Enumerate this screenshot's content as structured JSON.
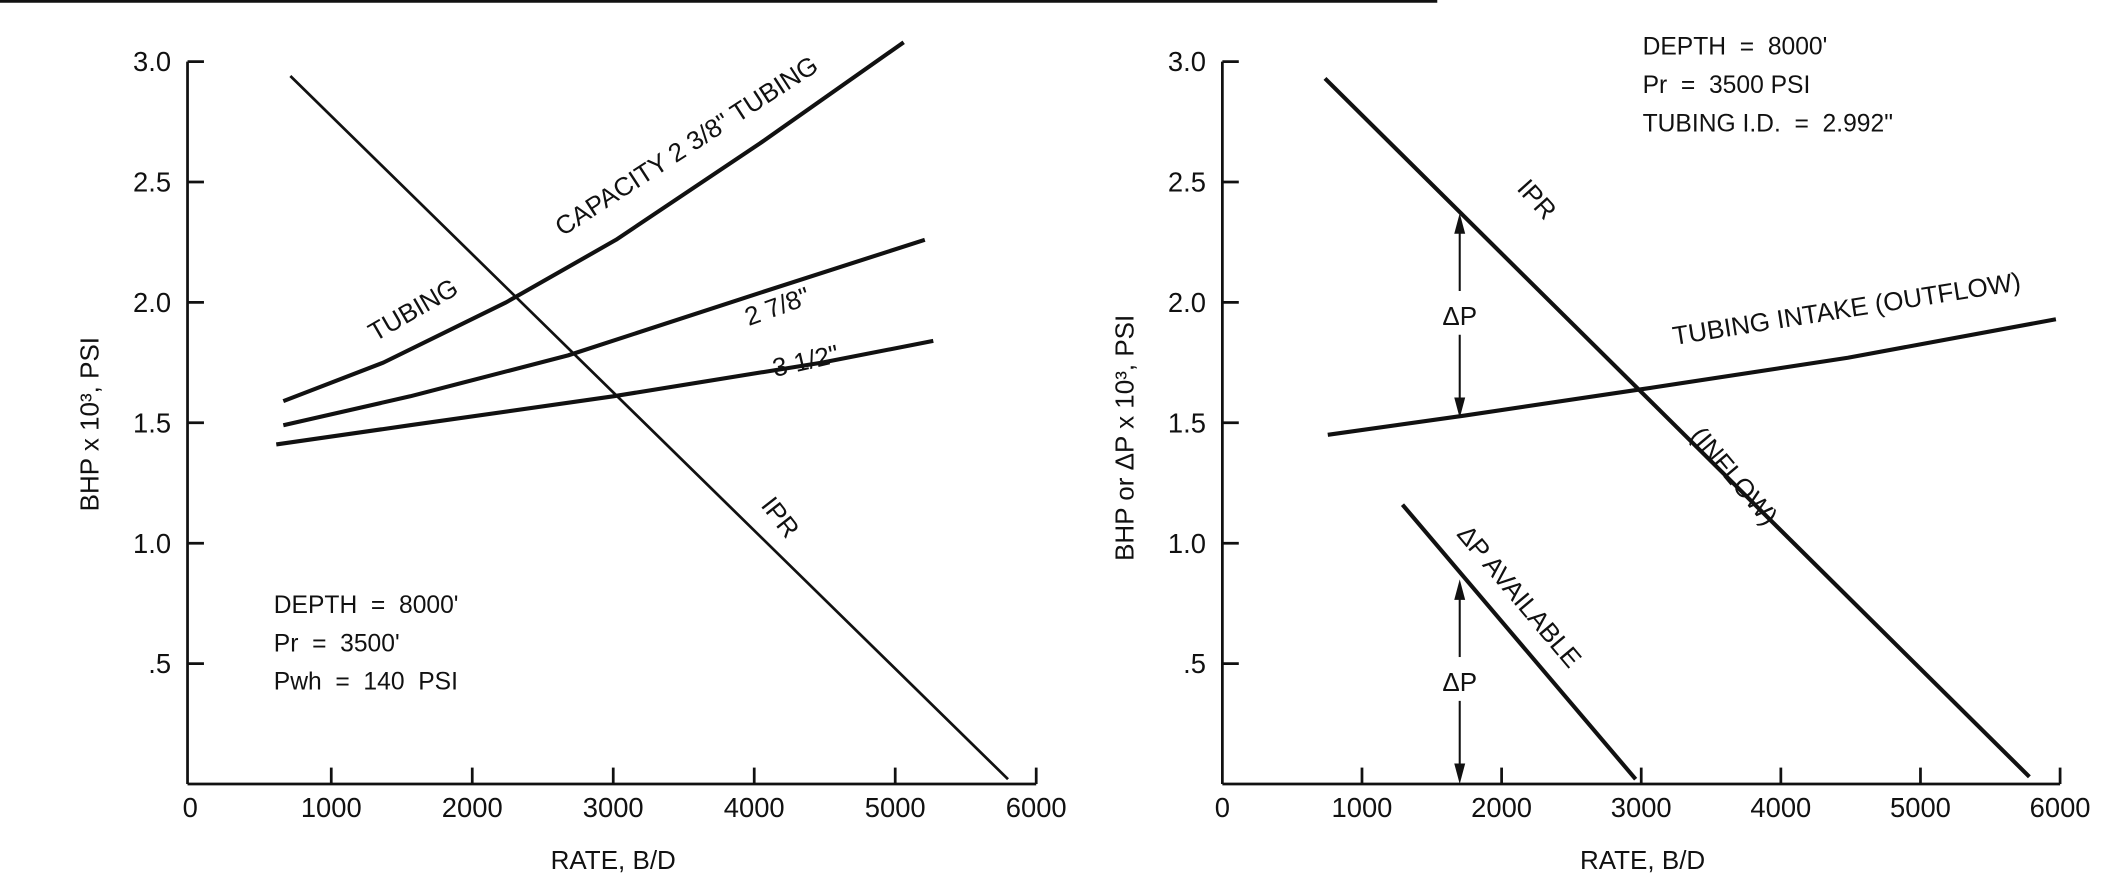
{
  "chart_data": [
    {
      "type": "line",
      "xlabel": "RATE, B/D",
      "ylabel": "BHP x 10³, PSI",
      "xlim": [
        0,
        6000
      ],
      "ylim": [
        0,
        3.0
      ],
      "xticks": [
        "0",
        "1000",
        "2000",
        "3000",
        "4000",
        "5000",
        "6000"
      ],
      "yticks": [
        ".5",
        "1.0",
        "1.5",
        "2.0",
        "2.5",
        "3.0"
      ],
      "grid": false,
      "series": [
        {
          "name": "IPR",
          "x": [
            710,
            5800
          ],
          "y": [
            2.94,
            0.02
          ]
        },
        {
          "name": "TUBING CAPACITY 2 3/8\" TUBING",
          "x": [
            660,
            1370,
            2240,
            3020,
            4040,
            5060
          ],
          "y": [
            1.59,
            1.75,
            2.0,
            2.26,
            2.66,
            3.08
          ]
        },
        {
          "name": "2 7/8\"",
          "x": [
            660,
            1560,
            2680,
            3990,
            5210
          ],
          "y": [
            1.49,
            1.61,
            1.78,
            2.03,
            2.26
          ]
        },
        {
          "name": "3 1/2\"",
          "x": [
            610,
            1560,
            3000,
            4480,
            5270
          ],
          "y": [
            1.41,
            1.49,
            1.61,
            1.75,
            1.84
          ]
        }
      ],
      "labels": [
        "IPR",
        "TUBING",
        "CAPACITY 2 3/8\" TUBING",
        "2 7/8\"",
        "3 1/2\""
      ],
      "notes": [
        "DEPTH  =  8000'",
        "Pr  =  3500'",
        "Pwh  =  140  PSI"
      ]
    },
    {
      "type": "line",
      "xlabel": "RATE, B/D",
      "ylabel": "BHP or ΔP x 10³, PSI",
      "xlim": [
        0,
        6000
      ],
      "ylim": [
        0,
        3.0
      ],
      "xticks": [
        "0",
        "1000",
        "2000",
        "3000",
        "4000",
        "5000",
        "6000"
      ],
      "yticks": [
        ".5",
        "1.0",
        "1.5",
        "2.0",
        "2.5",
        "3.0"
      ],
      "grid": false,
      "series": [
        {
          "name": "IPR (INFLOW)",
          "x": [
            735,
            5780
          ],
          "y": [
            2.93,
            0.03
          ]
        },
        {
          "name": "TUBING INTAKE (OUTFLOW)",
          "x": [
            755,
            1735,
            3010,
            4480,
            5970
          ],
          "y": [
            1.45,
            1.53,
            1.64,
            1.77,
            1.93
          ]
        },
        {
          "name": "ΔP AVAILABLE",
          "x": [
            1290,
            2960
          ],
          "y": [
            1.16,
            0.02
          ]
        }
      ],
      "arrows": [
        {
          "x": 1700,
          "y_from": 1.52,
          "y_to": 2.37,
          "label": "ΔP"
        },
        {
          "x": 1700,
          "y_from": 0,
          "y_to": 0.85,
          "label": "ΔP"
        }
      ],
      "labels": [
        "IPR",
        "TUBING INTAKE (OUTFLOW)",
        "(INFLOW)",
        "ΔP AVAILABLE"
      ],
      "notes": [
        "DEPTH  =  8000'",
        "Pr  =  3500 PSI",
        "TUBING I.D.  =  2.992\""
      ]
    }
  ]
}
